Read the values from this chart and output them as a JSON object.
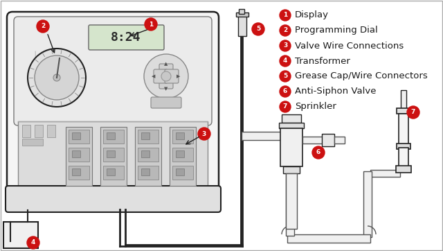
{
  "background_color": "#ffffff",
  "legend_items": [
    {
      "num": "1",
      "label": "Display"
    },
    {
      "num": "2",
      "label": "Programming Dial"
    },
    {
      "num": "3",
      "label": "Valve Wire Connections"
    },
    {
      "num": "4",
      "label": "Transformer"
    },
    {
      "num": "5",
      "label": "Grease Cap/Wire Connectors"
    },
    {
      "num": "6",
      "label": "Anti-Siphon Valve"
    },
    {
      "num": "7",
      "label": "Sprinkler"
    }
  ],
  "circle_color": "#cc1111",
  "circle_text_color": "#ffffff",
  "line_color": "#222222",
  "controller_fill": "#f2f2f2",
  "panel_fill": "#e8e8e8",
  "display_fill": "#dde8d8",
  "dial_fill": "#e0e0e0",
  "pipe_fill": "#f5f5f5",
  "pipe_edge": "#555555",
  "tray_fill": "#e4e4e4",
  "lower_fill": "#d8d8d8"
}
